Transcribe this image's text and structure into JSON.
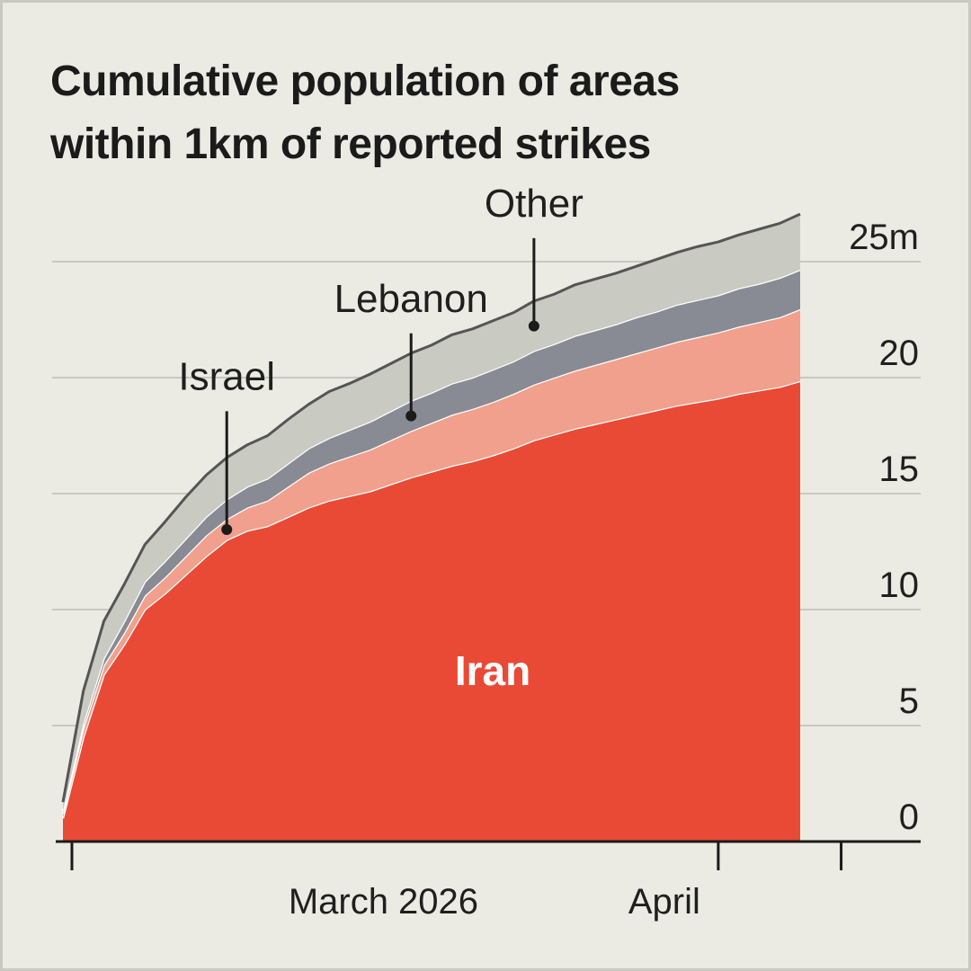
{
  "title_lines": [
    "Cumulative population of areas",
    "within 1km of reported strikes"
  ],
  "chart_data": {
    "type": "area",
    "stacked": true,
    "title": "Cumulative population of areas within 1km of reported strikes",
    "xlabel": "",
    "ylabel": "",
    "y_unit": "m",
    "x_range": [
      "2026-02-28",
      "2026-04-05"
    ],
    "ylim": [
      0,
      25
    ],
    "yticks": [
      0,
      5,
      10,
      15,
      20,
      25
    ],
    "ytick_labels": [
      "0",
      "5",
      "10",
      "15",
      "20",
      "25m"
    ],
    "xticks": [
      {
        "date": "2026-02-28",
        "label": ""
      },
      {
        "date": "2026-04-01",
        "label": "April"
      },
      {
        "date": "2026-04-07",
        "label": ""
      }
    ],
    "x_group_label": "March 2026",
    "x_group_label_date": "2026-03-16",
    "grid": true,
    "x": [
      "2026-02-28",
      "2026-03-01",
      "2026-03-02",
      "2026-03-03",
      "2026-03-04",
      "2026-03-05",
      "2026-03-06",
      "2026-03-07",
      "2026-03-08",
      "2026-03-09",
      "2026-03-10",
      "2026-03-11",
      "2026-03-12",
      "2026-03-13",
      "2026-03-14",
      "2026-03-15",
      "2026-03-16",
      "2026-03-17",
      "2026-03-18",
      "2026-03-19",
      "2026-03-20",
      "2026-03-21",
      "2026-03-22",
      "2026-03-23",
      "2026-03-24",
      "2026-03-25",
      "2026-03-26",
      "2026-03-27",
      "2026-03-28",
      "2026-03-29",
      "2026-03-30",
      "2026-03-31",
      "2026-04-01",
      "2026-04-02",
      "2026-04-03",
      "2026-04-04",
      "2026-04-05"
    ],
    "series": [
      {
        "name": "Iran",
        "color": "#e84a36",
        "values": [
          1.0,
          4.5,
          7.2,
          8.5,
          10.0,
          10.7,
          11.5,
          12.3,
          13.0,
          13.4,
          13.6,
          14.0,
          14.4,
          14.7,
          14.9,
          15.1,
          15.4,
          15.7,
          15.95,
          16.2,
          16.4,
          16.65,
          16.95,
          17.3,
          17.55,
          17.8,
          18.0,
          18.2,
          18.4,
          18.6,
          18.8,
          18.95,
          19.1,
          19.3,
          19.45,
          19.6,
          19.85
        ]
      },
      {
        "name": "Israel",
        "color": "#f0a08c",
        "values": [
          0.2,
          0.4,
          0.4,
          0.5,
          0.6,
          0.7,
          0.8,
          0.9,
          0.9,
          1.0,
          1.1,
          1.3,
          1.5,
          1.6,
          1.7,
          1.8,
          1.9,
          2.0,
          2.1,
          2.2,
          2.25,
          2.3,
          2.35,
          2.4,
          2.45,
          2.5,
          2.55,
          2.6,
          2.65,
          2.7,
          2.75,
          2.8,
          2.85,
          2.9,
          2.95,
          3.0,
          3.1
        ]
      },
      {
        "name": "Lebanon",
        "color": "#888b93",
        "values": [
          0.1,
          0.2,
          0.3,
          0.5,
          0.6,
          0.7,
          0.75,
          0.8,
          0.85,
          0.9,
          0.95,
          1.0,
          1.05,
          1.1,
          1.15,
          1.2,
          1.25,
          1.3,
          1.3,
          1.35,
          1.35,
          1.4,
          1.4,
          1.45,
          1.45,
          1.5,
          1.5,
          1.5,
          1.55,
          1.55,
          1.6,
          1.6,
          1.6,
          1.65,
          1.65,
          1.7,
          1.7
        ]
      },
      {
        "name": "Other",
        "color": "#c9cac1",
        "values": [
          0.4,
          1.4,
          1.6,
          1.6,
          1.6,
          1.7,
          1.8,
          1.8,
          1.8,
          1.8,
          1.85,
          1.9,
          1.9,
          2.0,
          2.0,
          2.05,
          2.05,
          2.05,
          2.05,
          2.1,
          2.1,
          2.1,
          2.1,
          2.15,
          2.15,
          2.2,
          2.2,
          2.2,
          2.2,
          2.25,
          2.25,
          2.3,
          2.3,
          2.3,
          2.35,
          2.35,
          2.4
        ]
      }
    ],
    "annotations": [
      {
        "text": "Iran",
        "series": "Iran",
        "style": "inside"
      },
      {
        "text": "Israel",
        "series": "Israel",
        "date": "2026-03-08",
        "style": "leader"
      },
      {
        "text": "Lebanon",
        "series": "Lebanon",
        "date": "2026-03-17",
        "style": "leader"
      },
      {
        "text": "Other",
        "series": "Other",
        "date": "2026-03-23",
        "style": "leader"
      }
    ]
  }
}
